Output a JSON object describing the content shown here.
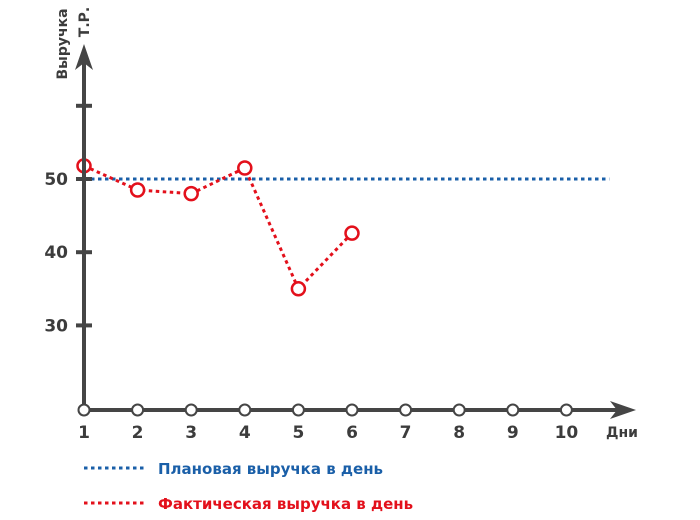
{
  "chart_data": {
    "type": "line",
    "title": "",
    "xlabel": "Дни",
    "ylabel": [
      "Выручка",
      "Т.Р."
    ],
    "categories": [
      "1",
      "2",
      "3",
      "4",
      "5",
      "6",
      "7",
      "8",
      "9",
      "10"
    ],
    "x": [
      1,
      2,
      3,
      4,
      5,
      6,
      7,
      8,
      9,
      10
    ],
    "y_ticks": [
      30,
      40,
      50
    ],
    "y_tick_labels": [
      "30",
      "40",
      "50"
    ],
    "ylim": [
      18,
      60
    ],
    "grid": false,
    "legend_position": "bottom-left",
    "series": [
      {
        "name": "Плановая выручка в день",
        "style": "dotted",
        "markers": false,
        "color": "#1a5fa8",
        "x": [
          1,
          10.8
        ],
        "values": [
          50,
          50
        ]
      },
      {
        "name": "Фактическая выручка в день",
        "style": "dotted",
        "markers": true,
        "color": "#e3101b",
        "x": [
          1,
          2,
          3,
          4,
          5,
          6
        ],
        "values": [
          51.8,
          48.5,
          48,
          51.5,
          35,
          42.6
        ]
      }
    ],
    "axis_color": "#454545"
  }
}
